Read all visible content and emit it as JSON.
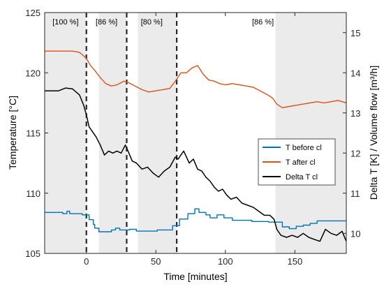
{
  "chart_data": {
    "type": "line",
    "xlabel": "Time [minutes]",
    "ylabel_left": "Temperature [°C]",
    "ylabel_right": "Delta T [K] / Volume flow [m³/h]",
    "xlim": [
      -30,
      187
    ],
    "ylim_left": [
      105,
      125
    ],
    "ylim_right": [
      9.5,
      15.5
    ],
    "x_ticks": [
      0,
      50,
      100,
      150
    ],
    "y_ticks_left": [
      105,
      110,
      115,
      120,
      125
    ],
    "y_ticks_right": [
      10,
      11,
      12,
      13,
      14,
      15
    ],
    "grid": false,
    "legend_position": "center-right",
    "vertical_lines": [
      0,
      29,
      65
    ],
    "shaded_bands": [
      {
        "x": [
          -30,
          0
        ]
      },
      {
        "x": [
          9,
          29
        ]
      },
      {
        "x": [
          37,
          65
        ]
      },
      {
        "x": [
          136,
          187
        ]
      }
    ],
    "band_labels": [
      {
        "text": "[100 %]",
        "x": -15
      },
      {
        "text": "[86 %]",
        "x": 14.5
      },
      {
        "text": "[80 %]",
        "x": 47
      },
      {
        "text": "[86 %]",
        "x": 127
      }
    ],
    "series": [
      {
        "name": "T before cl",
        "axis": "left",
        "color": "#0072BD",
        "step": true,
        "x": [
          -30,
          -17,
          -14,
          -12,
          -3,
          2,
          5,
          6,
          9,
          18,
          21,
          24,
          31,
          36,
          51,
          62,
          67,
          73,
          78,
          81,
          86,
          89,
          94,
          99,
          105,
          119,
          131,
          141,
          146,
          151,
          156,
          161,
          166,
          187
        ],
        "y": [
          108.4,
          108.3,
          108.5,
          108.3,
          108.2,
          107.8,
          107.4,
          107.1,
          106.8,
          106.95,
          107.1,
          106.95,
          107.0,
          106.85,
          106.95,
          107.3,
          107.85,
          108.3,
          108.7,
          108.4,
          108.2,
          107.95,
          108.2,
          107.95,
          107.75,
          107.65,
          107.6,
          107.2,
          107.05,
          107.25,
          107.35,
          107.5,
          107.7,
          107.7
        ]
      },
      {
        "name": "T after cl",
        "axis": "left",
        "color": "#D95319",
        "x": [
          -30,
          -20,
          -10,
          -5,
          0,
          3,
          6,
          10,
          14,
          18,
          22,
          27,
          30,
          35,
          40,
          45,
          50,
          55,
          60,
          64,
          68,
          72,
          76,
          80,
          84,
          88,
          92,
          96,
          100,
          105,
          110,
          115,
          120,
          125,
          130,
          134,
          137,
          141,
          146,
          151,
          156,
          161,
          166,
          171,
          176,
          181,
          187
        ],
        "y": [
          121.8,
          121.8,
          121.8,
          121.7,
          121.2,
          120.6,
          120.2,
          119.6,
          119.1,
          118.9,
          119.0,
          119.3,
          119.2,
          118.9,
          118.6,
          118.4,
          118.5,
          118.6,
          118.7,
          119.3,
          120.0,
          120.0,
          120.4,
          120.6,
          119.9,
          119.4,
          119.3,
          119.1,
          119.0,
          119.1,
          119.0,
          118.9,
          118.8,
          118.5,
          118.2,
          117.9,
          117.4,
          117.1,
          117.2,
          117.3,
          117.4,
          117.5,
          117.6,
          117.5,
          117.6,
          117.7,
          117.5
        ]
      },
      {
        "name": "Delta T cl",
        "axis": "right",
        "color": "#000000",
        "x": [
          -30,
          -20,
          -15,
          -10,
          -5,
          -2,
          0,
          2,
          4,
          7,
          10,
          13,
          16,
          19,
          22,
          25,
          28,
          30,
          33,
          36,
          40,
          44,
          48,
          52,
          56,
          60,
          64,
          66,
          68,
          70,
          72,
          74,
          77,
          80,
          83,
          86,
          89,
          92,
          95,
          98,
          101,
          104,
          108,
          112,
          116,
          120,
          124,
          128,
          132,
          135,
          137,
          140,
          144,
          148,
          152,
          156,
          160,
          164,
          168,
          172,
          176,
          180,
          184,
          187
        ],
        "y": [
          13.55,
          13.55,
          13.62,
          13.6,
          13.45,
          13.2,
          12.95,
          12.65,
          12.55,
          12.4,
          12.2,
          11.95,
          12.05,
          12.0,
          12.05,
          12.0,
          12.2,
          12.05,
          11.8,
          11.75,
          11.6,
          11.65,
          11.5,
          11.4,
          11.55,
          11.65,
          11.9,
          11.85,
          11.95,
          12.05,
          11.9,
          11.75,
          11.85,
          11.6,
          11.55,
          11.4,
          11.3,
          11.15,
          11.05,
          11.1,
          10.95,
          10.85,
          10.9,
          10.75,
          10.7,
          10.65,
          10.55,
          10.45,
          10.45,
          10.35,
          10.1,
          9.95,
          9.9,
          9.95,
          9.9,
          10.0,
          9.9,
          9.85,
          9.8,
          10.1,
          10.0,
          9.95,
          10.05,
          9.8
        ]
      }
    ]
  }
}
